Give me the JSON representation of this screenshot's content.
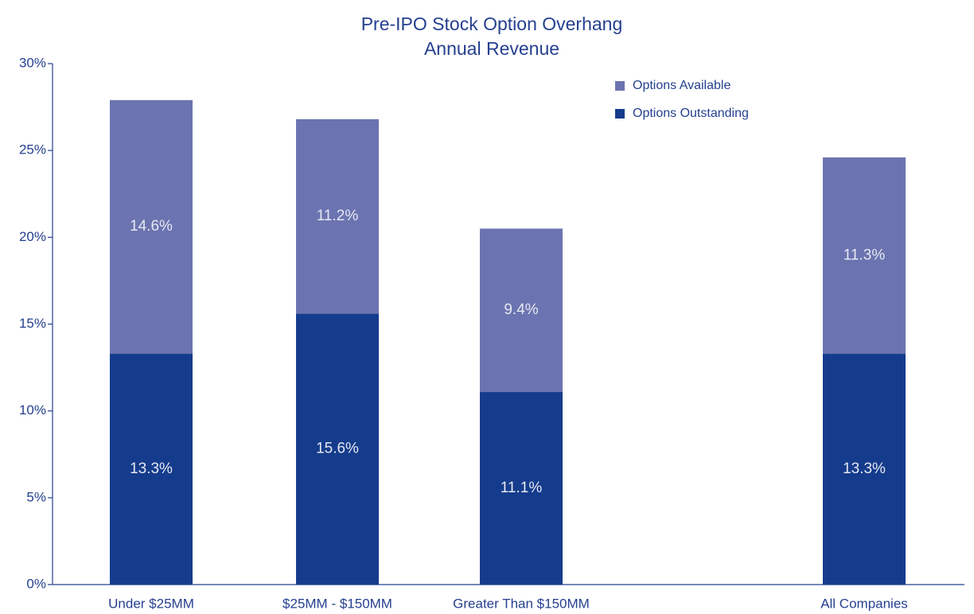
{
  "chart_data": {
    "type": "stacked_bar",
    "title": "Pre-IPO Stock Option Overhang",
    "subtitle": "Annual Revenue",
    "categories": [
      "Under $25MM",
      "$25MM - $150MM",
      "Greater Than $150MM",
      "All Companies"
    ],
    "series": [
      {
        "name": "Options Outstanding",
        "color": "#153c8c",
        "values": [
          13.3,
          15.6,
          11.1,
          13.3
        ],
        "value_labels": [
          "13.3%",
          "15.6%",
          "11.1%",
          "13.3%"
        ]
      },
      {
        "name": "Options Available",
        "color": "#6b74b0",
        "values": [
          14.6,
          11.2,
          9.4,
          11.3
        ],
        "value_labels": [
          "14.6%",
          "11.2%",
          "9.4%",
          "11.3%"
        ]
      }
    ],
    "ylim": [
      0,
      30
    ],
    "yticks": [
      {
        "value": 0,
        "label": "0%"
      },
      {
        "value": 5,
        "label": "5%"
      },
      {
        "value": 10,
        "label": "10%"
      },
      {
        "value": 15,
        "label": "15%"
      },
      {
        "value": 20,
        "label": "20%"
      },
      {
        "value": 25,
        "label": "25%"
      },
      {
        "value": 30,
        "label": "30%"
      }
    ],
    "legend": "top-right"
  }
}
